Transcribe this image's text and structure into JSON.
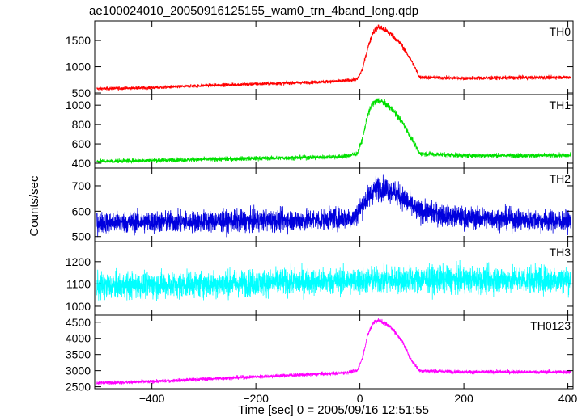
{
  "chart_data": {
    "type": "line",
    "title": "ae100024010_20050916125155_wam0_trn_4band_long.qdp",
    "xlabel": "Time [sec] 0 = 2005/09/16 12:51:55",
    "ylabel": "Counts/sec",
    "xlim": [
      -510,
      410
    ],
    "xticks": [
      -400,
      -200,
      0,
      200,
      400
    ],
    "xtick_labels": [
      "−400",
      "−200",
      "0",
      "200",
      "400"
    ],
    "grid": false,
    "legend": "none",
    "series": [
      {
        "name": "TH0",
        "color": "#ff0000",
        "ylim": [
          470,
          1870
        ],
        "yticks": [
          500,
          1000,
          1500
        ],
        "noise": 22,
        "x": [
          -505,
          -400,
          -300,
          -200,
          -100,
          -30,
          -5,
          5,
          15,
          25,
          35,
          45,
          60,
          80,
          100,
          115,
          200,
          300,
          400
        ],
        "y": [
          580,
          600,
          640,
          670,
          700,
          730,
          760,
          950,
          1350,
          1650,
          1760,
          1720,
          1620,
          1420,
          1100,
          800,
          780,
          790,
          800
        ]
      },
      {
        "name": "TH1",
        "color": "#00e000",
        "ylim": [
          350,
          1110
        ],
        "yticks": [
          400,
          600,
          800,
          1000
        ],
        "noise": 16,
        "x": [
          -505,
          -400,
          -300,
          -200,
          -100,
          -30,
          -5,
          5,
          15,
          25,
          35,
          45,
          60,
          80,
          100,
          115,
          200,
          300,
          400
        ],
        "y": [
          420,
          430,
          440,
          450,
          460,
          470,
          500,
          650,
          900,
          1020,
          1050,
          1030,
          970,
          840,
          650,
          500,
          480,
          480,
          480
        ]
      },
      {
        "name": "TH2",
        "color": "#0000dd",
        "ylim": [
          480,
          770
        ],
        "yticks": [
          500,
          600,
          700
        ],
        "noise": 30,
        "x": [
          -505,
          -300,
          -100,
          -10,
          10,
          30,
          50,
          70,
          90,
          110,
          200,
          300,
          400
        ],
        "y": [
          555,
          560,
          565,
          575,
          640,
          690,
          690,
          670,
          640,
          600,
          575,
          568,
          560
        ]
      },
      {
        "name": "TH3",
        "color": "#00ffff",
        "ylim": [
          960,
          1290
        ],
        "yticks": [
          1000,
          1100,
          1200
        ],
        "noise": 42,
        "x": [
          -505,
          -300,
          -100,
          0,
          100,
          200,
          300,
          400
        ],
        "y": [
          1090,
          1100,
          1110,
          1115,
          1120,
          1118,
          1120,
          1120
        ]
      },
      {
        "name": "TH0123",
        "color": "#ff00ff",
        "ylim": [
          2440,
          4720
        ],
        "yticks": [
          2500,
          3000,
          3500,
          4000,
          4500
        ],
        "noise": 40,
        "x": [
          -505,
          -400,
          -300,
          -200,
          -100,
          -30,
          -5,
          5,
          15,
          25,
          35,
          45,
          60,
          80,
          100,
          115,
          200,
          300,
          400
        ],
        "y": [
          2620,
          2660,
          2740,
          2810,
          2880,
          2930,
          3000,
          3400,
          4100,
          4480,
          4560,
          4500,
          4350,
          3950,
          3300,
          3000,
          2960,
          2960,
          2960
        ]
      }
    ]
  }
}
